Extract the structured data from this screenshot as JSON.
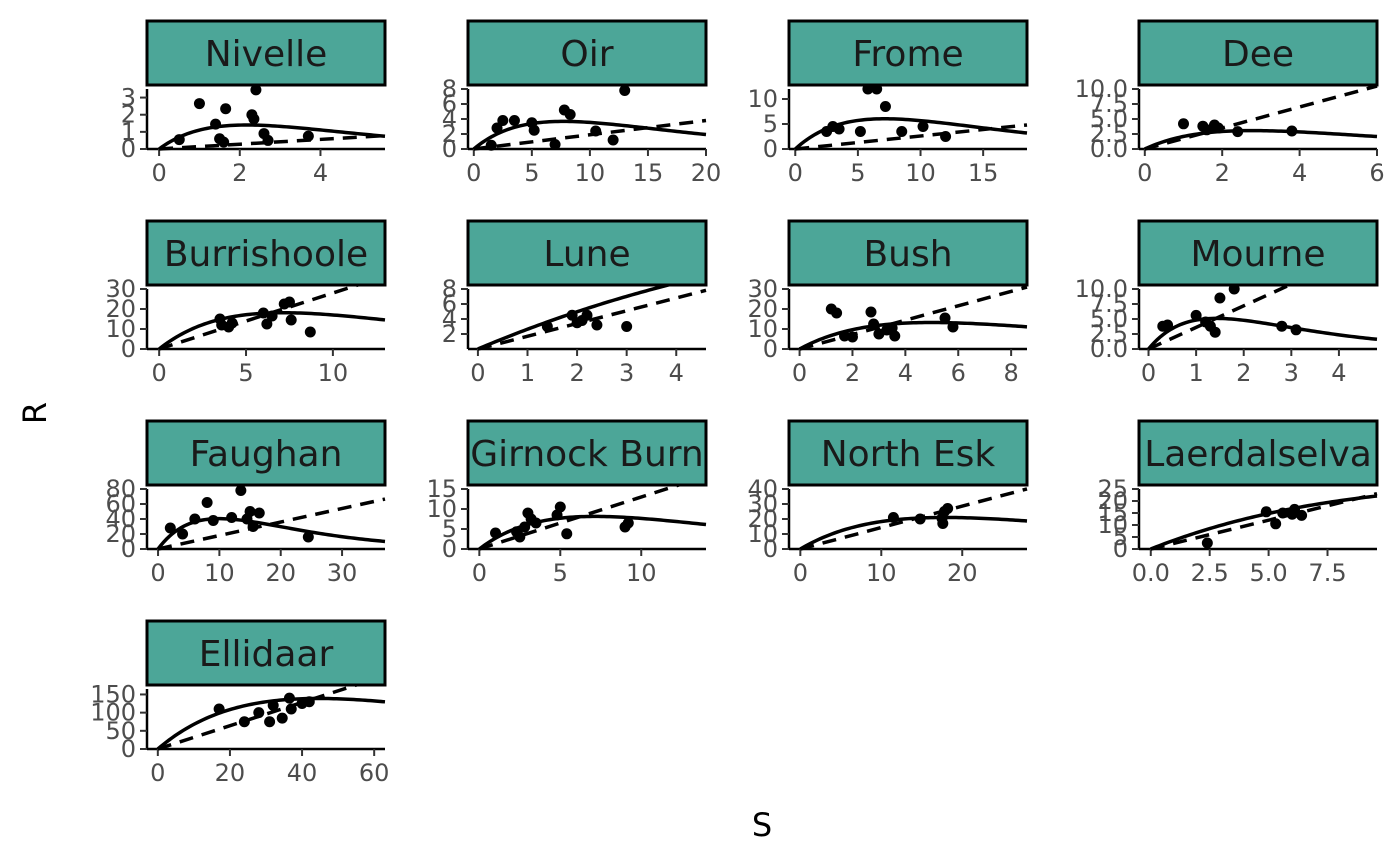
{
  "chart_data": {
    "type": "scatter",
    "xlabel": "S",
    "ylabel": "R",
    "grid": false,
    "colors": {
      "strip_fill": "#4ca698",
      "strip_border": "#000000",
      "points": "#000000",
      "lines": "#000000"
    },
    "series_styles": [
      {
        "kind": "curve",
        "line": "solid"
      },
      {
        "kind": "proportional",
        "line": "dashed"
      }
    ],
    "panels": [
      {
        "name": "Nivelle",
        "xlim": [
          -0.3,
          5.6
        ],
        "ylim": [
          0,
          3.5
        ],
        "xticks": [
          0,
          2,
          4
        ],
        "yticks": [
          0,
          1,
          2,
          3
        ],
        "points": [
          [
            0.5,
            0.55
          ],
          [
            1.0,
            2.65
          ],
          [
            1.4,
            1.45
          ],
          [
            1.5,
            0.6
          ],
          [
            1.6,
            0.4
          ],
          [
            1.65,
            2.35
          ],
          [
            2.3,
            2.0
          ],
          [
            2.35,
            1.75
          ],
          [
            2.4,
            3.45
          ],
          [
            2.6,
            0.9
          ],
          [
            2.7,
            0.5
          ],
          [
            3.7,
            0.75
          ]
        ],
        "ricker": [
          1.75,
          0.46
        ],
        "prop_slope": 0.14
      },
      {
        "name": "Oir",
        "xlim": [
          -0.5,
          20.0
        ],
        "ylim": [
          0,
          8.0
        ],
        "xticks": [
          0,
          5,
          10,
          15,
          20
        ],
        "yticks": [
          0,
          2,
          4,
          6,
          8
        ],
        "points": [
          [
            1.5,
            0.5
          ],
          [
            2.0,
            2.8
          ],
          [
            2.5,
            3.8
          ],
          [
            3.5,
            3.8
          ],
          [
            5.0,
            3.5
          ],
          [
            5.2,
            2.5
          ],
          [
            7.0,
            0.6
          ],
          [
            7.8,
            5.2
          ],
          [
            8.3,
            4.6
          ],
          [
            10.5,
            2.4
          ],
          [
            12.0,
            1.2
          ],
          [
            13.0,
            7.8
          ]
        ],
        "ricker": [
          1.3,
          0.13
        ],
        "prop_slope": 0.19
      },
      {
        "name": "Frome",
        "xlim": [
          -0.5,
          18.5
        ],
        "ylim": [
          0,
          12.0
        ],
        "xticks": [
          0,
          5,
          10,
          15
        ],
        "yticks": [
          0,
          5,
          10
        ],
        "points": [
          [
            2.5,
            3.5
          ],
          [
            3.0,
            4.5
          ],
          [
            3.5,
            4.0
          ],
          [
            5.2,
            3.5
          ],
          [
            5.8,
            12.0
          ],
          [
            6.5,
            12.0
          ],
          [
            7.2,
            8.5
          ],
          [
            8.5,
            3.5
          ],
          [
            10.2,
            4.5
          ],
          [
            12.0,
            2.5
          ]
        ],
        "ricker": [
          2.3,
          0.14
        ],
        "prop_slope": 0.26
      },
      {
        "name": "Dee",
        "xlim": [
          -0.15,
          6.0
        ],
        "ylim": [
          0,
          10.0
        ],
        "xticks": [
          0,
          2,
          4,
          6
        ],
        "yticks": [
          0.0,
          2.5,
          5.0,
          7.5,
          10.0
        ],
        "ytick_labels": [
          "0.0",
          "2.5",
          "5.0",
          "7.5",
          "10.0"
        ],
        "points": [
          [
            1.0,
            4.2
          ],
          [
            1.5,
            3.8
          ],
          [
            1.6,
            3.2
          ],
          [
            1.8,
            4.0
          ],
          [
            1.9,
            3.5
          ],
          [
            2.4,
            2.9
          ],
          [
            3.8,
            3.0
          ]
        ],
        "ricker": [
          3.0,
          0.36
        ],
        "prop_slope": 1.75
      },
      {
        "name": "Burrishoole",
        "xlim": [
          -0.7,
          13.0
        ],
        "ylim": [
          0,
          30.0
        ],
        "xticks": [
          0,
          5,
          10
        ],
        "yticks": [
          0,
          10,
          20,
          30
        ],
        "points": [
          [
            3.5,
            15.0
          ],
          [
            3.6,
            12.0
          ],
          [
            4.0,
            11.0
          ],
          [
            4.2,
            13.0
          ],
          [
            6.0,
            18.0
          ],
          [
            6.2,
            12.5
          ],
          [
            6.5,
            16.5
          ],
          [
            7.2,
            22.5
          ],
          [
            7.5,
            23.5
          ],
          [
            7.6,
            14.5
          ],
          [
            8.7,
            8.5
          ]
        ],
        "ricker": [
          6.9,
          0.14
        ],
        "prop_slope": 2.8
      },
      {
        "name": "Lune",
        "xlim": [
          -0.2,
          4.6
        ],
        "ylim": [
          0,
          8.0
        ],
        "xticks": [
          0,
          1,
          2,
          3,
          4
        ],
        "yticks": [
          2,
          4,
          6,
          8
        ],
        "points": [
          [
            1.4,
            3.0
          ],
          [
            1.9,
            4.5
          ],
          [
            2.0,
            3.5
          ],
          [
            2.1,
            3.8
          ],
          [
            2.2,
            4.5
          ],
          [
            2.4,
            3.2
          ],
          [
            3.0,
            3.0
          ]
        ],
        "ricker": [
          2.8,
          0.06
        ],
        "prop_slope": 1.7
      },
      {
        "name": "Bush",
        "xlim": [
          -0.4,
          8.6
        ],
        "ylim": [
          0,
          30.0
        ],
        "xticks": [
          0,
          2,
          4,
          6,
          8
        ],
        "yticks": [
          0,
          10,
          20,
          30
        ],
        "points": [
          [
            1.2,
            20.0
          ],
          [
            1.4,
            18.0
          ],
          [
            1.7,
            6.5
          ],
          [
            2.0,
            6.0
          ],
          [
            2.7,
            18.5
          ],
          [
            2.8,
            12.5
          ],
          [
            3.0,
            7.5
          ],
          [
            3.3,
            9.5
          ],
          [
            3.5,
            10.5
          ],
          [
            3.6,
            6.5
          ],
          [
            5.5,
            15.5
          ],
          [
            5.8,
            11.0
          ]
        ],
        "ricker": [
          7.2,
          0.2
        ],
        "prop_slope": 3.6
      },
      {
        "name": "Mourne",
        "xlim": [
          -0.2,
          4.8
        ],
        "ylim": [
          0,
          10.0
        ],
        "xticks": [
          0,
          1,
          2,
          3,
          4
        ],
        "yticks": [
          0.0,
          2.5,
          5.0,
          7.5,
          10.0
        ],
        "ytick_labels": [
          "0.0",
          "2.5",
          "5.0",
          "7.5",
          "10.0"
        ],
        "points": [
          [
            0.3,
            3.8
          ],
          [
            0.4,
            4.0
          ],
          [
            1.0,
            5.6
          ],
          [
            1.2,
            4.5
          ],
          [
            1.3,
            3.8
          ],
          [
            1.4,
            2.8
          ],
          [
            1.5,
            8.5
          ],
          [
            1.8,
            10.0
          ],
          [
            2.8,
            3.8
          ],
          [
            3.1,
            3.2
          ]
        ],
        "ricker": [
          9.7,
          0.7
        ],
        "prop_slope": 3.6
      },
      {
        "name": "Faughan",
        "xlim": [
          -1.8,
          37.0
        ],
        "ylim": [
          0,
          80.0
        ],
        "xticks": [
          0,
          10,
          20,
          30
        ],
        "yticks": [
          0,
          20,
          40,
          60,
          80
        ],
        "points": [
          [
            2.0,
            28.0
          ],
          [
            4.0,
            20.0
          ],
          [
            6.0,
            40.0
          ],
          [
            8.0,
            62.0
          ],
          [
            9.0,
            38.0
          ],
          [
            12.0,
            42.0
          ],
          [
            13.5,
            78.0
          ],
          [
            14.5,
            40.0
          ],
          [
            15.0,
            50.0
          ],
          [
            15.5,
            30.0
          ],
          [
            16.5,
            48.0
          ],
          [
            24.5,
            16.0
          ]
        ],
        "ricker": [
          11.0,
          0.1
        ],
        "prop_slope": 1.8
      },
      {
        "name": "Girnock Burn",
        "xlim": [
          -0.7,
          14.0
        ],
        "ylim": [
          0,
          15.0
        ],
        "xticks": [
          0,
          5,
          10
        ],
        "yticks": [
          0,
          5,
          10,
          15
        ],
        "points": [
          [
            1.0,
            4.0
          ],
          [
            2.3,
            4.3
          ],
          [
            2.5,
            3.0
          ],
          [
            2.8,
            5.5
          ],
          [
            3.0,
            9.0
          ],
          [
            3.2,
            7.5
          ],
          [
            3.5,
            6.5
          ],
          [
            4.8,
            8.5
          ],
          [
            5.0,
            10.5
          ],
          [
            5.4,
            3.8
          ],
          [
            9.0,
            5.5
          ],
          [
            9.2,
            6.5
          ]
        ],
        "ricker": [
          3.1,
          0.14
        ],
        "prop_slope": 1.3
      },
      {
        "name": "North Esk",
        "xlim": [
          -1.4,
          28.0
        ],
        "ylim": [
          0,
          40.0
        ],
        "xticks": [
          0,
          10,
          20
        ],
        "yticks": [
          0,
          10,
          20,
          30,
          40
        ],
        "points": [
          [
            11.5,
            21.0
          ],
          [
            14.8,
            20.0
          ],
          [
            17.5,
            20.5
          ],
          [
            17.6,
            17.0
          ],
          [
            17.8,
            25.0
          ],
          [
            18.2,
            27.0
          ]
        ],
        "ricker": [
          3.2,
          0.056
        ],
        "prop_slope": 1.43
      },
      {
        "name": "Laerdalselva",
        "xlim": [
          -0.5,
          9.6
        ],
        "ylim": [
          0,
          25.0
        ],
        "xticks": [
          0.0,
          2.5,
          5.0,
          7.5
        ],
        "xtick_labels": [
          "0.0",
          "2.5",
          "5.0",
          "7.5"
        ],
        "yticks": [
          0,
          5,
          10,
          15,
          20,
          25
        ],
        "points": [
          [
            2.4,
            2.5
          ],
          [
            4.9,
            15.5
          ],
          [
            5.3,
            10.5
          ],
          [
            5.6,
            15.0
          ],
          [
            6.0,
            14.5
          ],
          [
            6.1,
            16.5
          ],
          [
            6.4,
            14.0
          ]
        ],
        "ricker": [
          3.9,
          0.055
        ],
        "prop_slope": 2.4
      },
      {
        "name": "Ellidaar",
        "xlim": [
          -3.0,
          63.0
        ],
        "ylim": [
          0,
          165.0
        ],
        "xticks": [
          0,
          20,
          40,
          60
        ],
        "yticks": [
          0,
          50,
          100,
          150
        ],
        "points": [
          [
            17.0,
            110.0
          ],
          [
            24.0,
            75.0
          ],
          [
            28.0,
            100.0
          ],
          [
            31.0,
            75.0
          ],
          [
            32.0,
            120.0
          ],
          [
            34.5,
            85.0
          ],
          [
            36.5,
            140.0
          ],
          [
            37.0,
            110.0
          ],
          [
            40.0,
            125.0
          ],
          [
            42.0,
            130.0
          ]
        ],
        "ricker": [
          8.5,
          0.0225
        ],
        "prop_slope": 3.2
      }
    ]
  }
}
